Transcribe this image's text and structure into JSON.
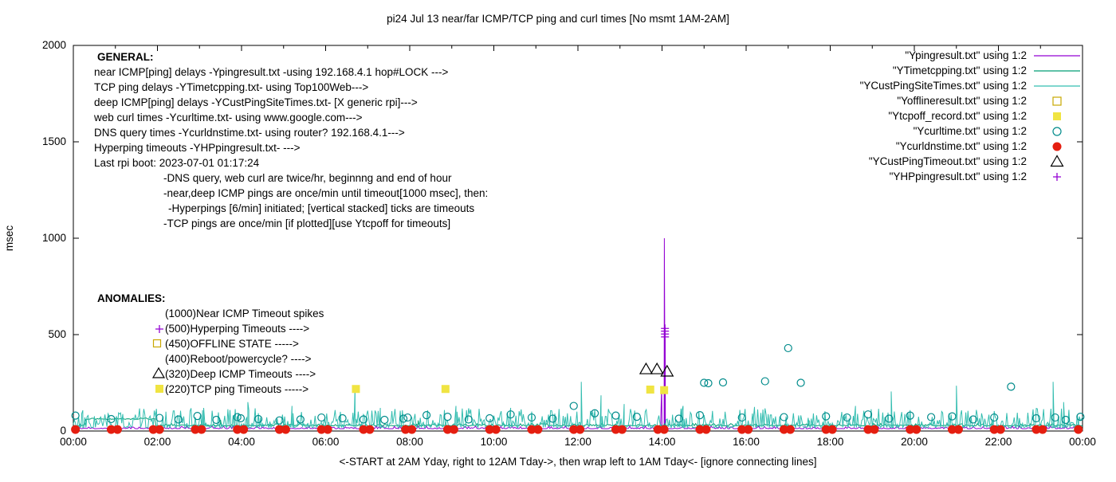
{
  "chart_data": {
    "type": "line",
    "title": "pi24 Jul 13  near/far ICMP/TCP ping and curl times [No msmt 1AM-2AM]",
    "xlabel": "<-START at 2AM Yday, right to 12AM Tday->, then wrap left to 1AM Tday<- [ignore connecting lines]",
    "ylabel": "msec",
    "xlim_hours": [
      0,
      24
    ],
    "ylim": [
      0,
      2000
    ],
    "yticks": [
      0,
      500,
      1000,
      1500,
      2000
    ],
    "xtick_labels": [
      "00:00",
      "02:00",
      "04:00",
      "06:00",
      "08:00",
      "10:00",
      "12:00",
      "14:00",
      "16:00",
      "18:00",
      "20:00",
      "22:00",
      "00:00"
    ],
    "grid": false,
    "legend_position": "top-right-inside",
    "series": [
      {
        "name": "Ypingresult.txt",
        "type": "noise-line",
        "color": "#9400d3",
        "width": 1,
        "base": 12,
        "noise_amp": 14,
        "points_per_hour": 30,
        "seed": 11,
        "spikes": [
          [
            13.99,
            230
          ],
          [
            14.055,
            1000
          ],
          [
            14.065,
            520
          ],
          [
            14.075,
            480
          ]
        ]
      },
      {
        "name": "YTimetcpping.txt",
        "type": "noise-line",
        "color": "#009e73",
        "width": 1,
        "base": 27,
        "noise_amp": 12,
        "points_per_hour": 30,
        "seed": 22,
        "segments": [
          [
            0.3,
            1.95,
            64
          ]
        ],
        "spikes": [
          [
            3.5,
            58
          ],
          [
            8.2,
            55
          ],
          [
            17.5,
            55
          ]
        ]
      },
      {
        "name": "YCustPingSiteTimes.txt",
        "type": "noise-line",
        "color": "#33bdb0",
        "width": 1,
        "base": 18,
        "noise_amp": 100,
        "points_per_hour": 40,
        "seed": 33,
        "spikes": [
          [
            0.2,
            90
          ],
          [
            2.2,
            100
          ],
          [
            3.1,
            120
          ],
          [
            4.15,
            150
          ],
          [
            5.2,
            130
          ],
          [
            6.7,
            235
          ],
          [
            7.3,
            120
          ],
          [
            9.1,
            130
          ],
          [
            10.4,
            120
          ],
          [
            12.08,
            255
          ],
          [
            12.55,
            185
          ],
          [
            13.1,
            140
          ],
          [
            14.5,
            130
          ],
          [
            16.2,
            125
          ],
          [
            18.6,
            130
          ],
          [
            19.45,
            205
          ],
          [
            21.0,
            235
          ],
          [
            23.3,
            255
          ],
          [
            23.55,
            150
          ]
        ]
      },
      {
        "name": "Yofflineresult.txt",
        "type": "scatter",
        "marker": "square-open",
        "color": "#c8a800",
        "size": 9,
        "points": []
      },
      {
        "name": "Ytcpoff_record.txt",
        "type": "scatter",
        "marker": "square-filled",
        "color": "#f0e442",
        "size": 10,
        "points": [
          [
            6.72,
            218
          ],
          [
            8.85,
            218
          ],
          [
            13.72,
            215
          ],
          [
            14.05,
            212
          ]
        ]
      },
      {
        "name": "Ycurltime.txt",
        "type": "scatter",
        "marker": "circle-open",
        "color": "#008b8b",
        "size": 9,
        "points": [
          [
            0.05,
            80
          ],
          [
            0.9,
            62
          ],
          [
            2.05,
            68
          ],
          [
            2.5,
            60
          ],
          [
            2.95,
            78
          ],
          [
            3.4,
            58
          ],
          [
            3.9,
            72
          ],
          [
            3.98,
            66
          ],
          [
            4.4,
            62
          ],
          [
            4.9,
            55
          ],
          [
            5.4,
            60
          ],
          [
            5.9,
            70
          ],
          [
            6.4,
            66
          ],
          [
            6.9,
            60
          ],
          [
            7.4,
            58
          ],
          [
            7.85,
            64
          ],
          [
            7.95,
            70
          ],
          [
            8.4,
            82
          ],
          [
            8.9,
            74
          ],
          [
            9.4,
            60
          ],
          [
            9.9,
            66
          ],
          [
            10.4,
            86
          ],
          [
            10.9,
            70
          ],
          [
            11.4,
            64
          ],
          [
            11.9,
            130
          ],
          [
            12.4,
            92
          ],
          [
            12.9,
            80
          ],
          [
            13.4,
            74
          ],
          [
            14.4,
            64
          ],
          [
            14.9,
            82
          ],
          [
            15.0,
            250
          ],
          [
            15.1,
            248
          ],
          [
            15.45,
            252
          ],
          [
            15.9,
            70
          ],
          [
            16.45,
            258
          ],
          [
            16.9,
            72
          ],
          [
            17.0,
            430
          ],
          [
            17.3,
            250
          ],
          [
            17.9,
            76
          ],
          [
            18.4,
            70
          ],
          [
            18.9,
            86
          ],
          [
            19.4,
            64
          ],
          [
            19.9,
            80
          ],
          [
            20.4,
            72
          ],
          [
            20.9,
            76
          ],
          [
            21.4,
            60
          ],
          [
            21.9,
            70
          ],
          [
            22.3,
            230
          ],
          [
            22.9,
            66
          ],
          [
            23.35,
            70
          ],
          [
            23.6,
            58
          ],
          [
            23.95,
            74
          ]
        ]
      },
      {
        "name": "Ycurldnstime.txt",
        "type": "scatter",
        "marker": "circle-filled",
        "color": "#e51e10",
        "size": 11,
        "hour_pairs": {
          "hours": [
            0,
            1,
            2,
            3,
            4,
            5,
            6,
            7,
            8,
            9,
            10,
            11,
            12,
            13,
            14,
            15,
            16,
            17,
            18,
            19,
            20,
            21,
            22,
            23
          ],
          "offsets": [
            0.05,
            0.9
          ],
          "y": 8
        }
      },
      {
        "name": "YCustPingTimeout.txt",
        "type": "scatter",
        "marker": "triangle-open",
        "color": "#000000",
        "size": 13,
        "points": [
          [
            13.62,
            320
          ],
          [
            13.88,
            320
          ],
          [
            14.12,
            308
          ]
        ]
      },
      {
        "name": "YHPpingresult.txt",
        "type": "scatter",
        "marker": "plus",
        "color": "#9400d3",
        "size": 10,
        "points": [
          [
            14.07,
            488
          ],
          [
            14.07,
            503
          ],
          [
            14.07,
            518
          ],
          [
            14.07,
            532
          ]
        ]
      }
    ],
    "legend": [
      {
        "label": "\"Ypingresult.txt\" using 1:2",
        "marker": "line",
        "color": "#9400d3"
      },
      {
        "label": "\"YTimetcpping.txt\" using 1:2",
        "marker": "line",
        "color": "#009e73"
      },
      {
        "label": "\"YCustPingSiteTimes.txt\" using 1:2",
        "marker": "line",
        "color": "#33bdb0"
      },
      {
        "label": "\"Yofflineresult.txt\" using 1:2",
        "marker": "square-open",
        "color": "#c8a800"
      },
      {
        "label": "\"Ytcpoff_record.txt\" using 1:2",
        "marker": "square-filled",
        "color": "#f0e442"
      },
      {
        "label": "\"Ycurltime.txt\" using 1:2",
        "marker": "circle-open",
        "color": "#008b8b"
      },
      {
        "label": "\"Ycurldnstime.txt\" using 1:2",
        "marker": "circle-filled",
        "color": "#e51e10"
      },
      {
        "label": "\"YCustPingTimeout.txt\" using 1:2",
        "marker": "triangle-open",
        "color": "#000000"
      },
      {
        "label": "\"YHPpingresult.txt\" using 1:2",
        "marker": "plus",
        "color": "#9400d3"
      }
    ],
    "annotations": [
      {
        "text": "GENERAL:",
        "x": 122,
        "y": 76,
        "bold": true
      },
      {
        "text": "near ICMP[ping] delays -Ypingresult.txt -using 192.168.4.1 hop#LOCK --->",
        "x": 118,
        "y": 95
      },
      {
        "text": "TCP ping delays -YTimetcpping.txt- using Top100Web--->",
        "x": 118,
        "y": 114
      },
      {
        "text": "deep ICMP[ping] delays -YCustPingSiteTimes.txt- [X generic rpi]--->",
        "x": 118,
        "y": 133
      },
      {
        "text": "web curl times -Ycurltime.txt- using www.google.com--->",
        "x": 118,
        "y": 152
      },
      {
        "text": "DNS query times -Ycurldnstime.txt- using router? 192.168.4.1--->",
        "x": 118,
        "y": 171
      },
      {
        "text": "Hyperping timeouts -YHPpingresult.txt- --->",
        "x": 118,
        "y": 190
      },
      {
        "text": "Last rpi boot: 2023-07-01 01:17:24",
        "x": 118,
        "y": 209
      },
      {
        "text": "-DNS query, web curl are twice/hr, beginnng and end of hour",
        "x": 205,
        "y": 228
      },
      {
        "text": "-near,deep ICMP pings are once/min until timeout[1000 msec], then:",
        "x": 205,
        "y": 247
      },
      {
        "text": "-Hyperpings [6/min] initiated; [vertical stacked] ticks are timeouts",
        "x": 211,
        "y": 266
      },
      {
        "text": "-TCP pings are once/min [if plotted][use Ytcpoff for timeouts]",
        "x": 205,
        "y": 285
      },
      {
        "text": "ANOMALIES:",
        "x": 122,
        "y": 379,
        "bold": true
      },
      {
        "text": "(1000)Near ICMP Timeout spikes",
        "x": 207,
        "y": 398
      },
      {
        "text": "(500)Hyperping Timeouts ---->",
        "x": 207,
        "y": 417
      },
      {
        "text": "(450)OFFLINE STATE ----->",
        "x": 207,
        "y": 436
      },
      {
        "text": "(400)Reboot/powercycle? ---->",
        "x": 207,
        "y": 455
      },
      {
        "text": "(320)Deep ICMP Timeouts ---->",
        "x": 207,
        "y": 474
      },
      {
        "text": "(220)TCP ping Timeouts ----->",
        "x": 207,
        "y": 493
      }
    ],
    "annotation_markers": [
      {
        "type": "plus",
        "x": 200,
        "y": 413,
        "color": "#9400d3",
        "size": 10
      },
      {
        "type": "square-open",
        "x": 197,
        "y": 431,
        "color": "#c8a800",
        "size": 9
      },
      {
        "type": "triangle-open",
        "x": 199,
        "y": 469,
        "color": "#000000",
        "size": 12
      },
      {
        "type": "square-filled",
        "x": 200,
        "y": 488,
        "color": "#f0e442",
        "size": 10
      }
    ]
  }
}
